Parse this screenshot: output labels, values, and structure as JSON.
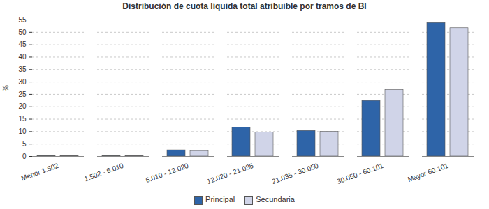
{
  "chart_data": {
    "type": "bar",
    "title": "Distribución de cuota líquida total atribuible por tramos de BI",
    "y_label": "%",
    "categories": [
      "Menor 1.502",
      "1.502 - 6.010",
      "6.010 - 12.020",
      "12.020 - 21.035",
      "21.035 - 30.050",
      "30.050 - 60.101",
      "Mayor 60.101"
    ],
    "series": [
      {
        "name": "Principal",
        "color": "#2e64a8",
        "values": [
          0.1,
          0.1,
          2.5,
          11.6,
          10.3,
          22.4,
          53.8
        ]
      },
      {
        "name": "Secundaria",
        "color": "#d0d4e8",
        "values": [
          0.1,
          0.1,
          2.2,
          9.7,
          10.0,
          26.8,
          51.7
        ]
      }
    ],
    "ylim": [
      0,
      55
    ],
    "yticks": [
      0,
      5,
      10,
      15,
      20,
      25,
      30,
      35,
      40,
      45,
      50,
      55
    ],
    "grid": true,
    "legend": "bottom"
  }
}
